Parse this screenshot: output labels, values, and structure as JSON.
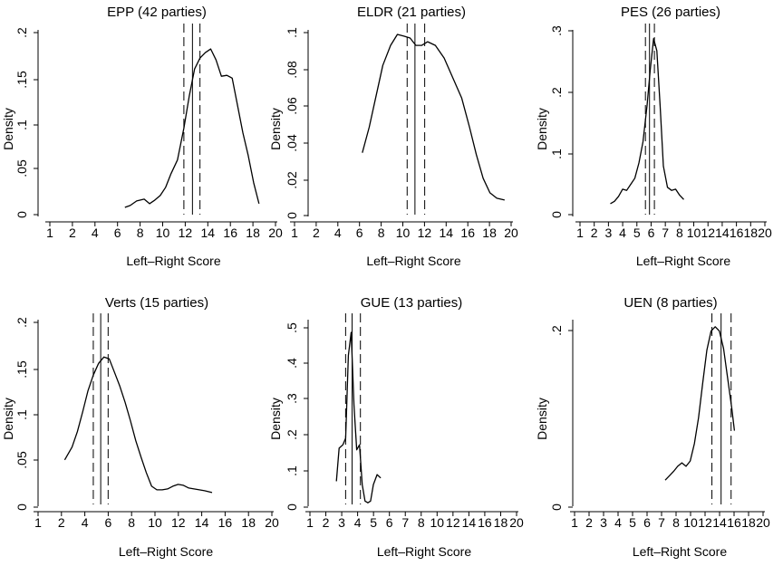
{
  "figure": {
    "x_ticks": [
      "1",
      "2",
      "4",
      "6",
      "8",
      "10",
      "12",
      "14",
      "16",
      "18",
      "20"
    ],
    "x_ticks_short": [
      "1",
      "2",
      "3",
      "4",
      "5",
      "6",
      "7",
      "8",
      "10",
      "12",
      "14",
      "16",
      "18",
      "20"
    ]
  },
  "chart_data": [
    {
      "type": "line",
      "title": "EPP (42 parties)",
      "xlabel": "Left–Right Score",
      "ylabel": "Density",
      "xlim": [
        1,
        20
      ],
      "ylim": [
        0,
        0.2
      ],
      "yticks": [
        0,
        0.05,
        0.1,
        0.15,
        0.2
      ],
      "ytick_labels": [
        "0",
        ".05",
        ".1",
        ".15",
        ".2"
      ],
      "ref_lines": {
        "mean": 12.6,
        "ci": [
          11.8,
          13.3
        ]
      },
      "x": [
        6.3,
        6.8,
        7.4,
        8.1,
        8.6,
        9.1,
        9.6,
        10.1,
        10.6,
        11.2,
        11.8,
        12.3,
        12.8,
        13.3,
        13.8,
        14.3,
        14.8,
        15.3,
        15.8,
        16.3,
        16.8,
        17.3,
        17.8,
        18.3,
        18.8
      ],
      "y": [
        0.008,
        0.01,
        0.015,
        0.017,
        0.012,
        0.016,
        0.021,
        0.03,
        0.045,
        0.06,
        0.095,
        0.13,
        0.16,
        0.172,
        0.178,
        0.182,
        0.17,
        0.152,
        0.153,
        0.15,
        0.12,
        0.09,
        0.065,
        0.035,
        0.012
      ]
    },
    {
      "type": "line",
      "title": "ELDR (21 parties)",
      "xlabel": "Left–Right Score",
      "ylabel": "Density",
      "xlim": [
        1,
        21
      ],
      "ylim": [
        0,
        0.1
      ],
      "yticks": [
        0,
        0.02,
        0.04,
        0.06,
        0.08,
        0.1
      ],
      "ytick_labels": [
        "0",
        ".02",
        ".04",
        ".06",
        ".08",
        ".1"
      ],
      "ref_lines": {
        "mean": 11.5,
        "ci": [
          10.7,
          12.5
        ]
      },
      "x": [
        6.1,
        6.8,
        7.5,
        8.2,
        9.0,
        9.7,
        10.4,
        11.0,
        11.6,
        12.2,
        12.8,
        13.6,
        14.5,
        15.4,
        16.3,
        17.1,
        17.8,
        18.5,
        19.2,
        19.9,
        20.7
      ],
      "y": [
        0.034,
        0.048,
        0.065,
        0.082,
        0.093,
        0.099,
        0.098,
        0.097,
        0.093,
        0.093,
        0.095,
        0.093,
        0.086,
        0.075,
        0.064,
        0.048,
        0.033,
        0.02,
        0.012,
        0.009,
        0.008
      ]
    },
    {
      "type": "line",
      "title": "PES (26 parties)",
      "xlabel": "Left–Right Score",
      "ylabel": "Density",
      "xlim": [
        1,
        21
      ],
      "ylim": [
        0,
        0.3
      ],
      "yticks": [
        0,
        0.1,
        0.2,
        0.3
      ],
      "ytick_labels": [
        "0",
        ".1",
        ".2",
        ".3"
      ],
      "ref_lines": {
        "mean": 7.3,
        "ci": [
          6.8,
          7.9
        ]
      },
      "x": [
        2.5,
        3.0,
        3.5,
        4.0,
        4.5,
        5.0,
        5.5,
        6.0,
        6.5,
        7.0,
        7.4,
        7.8,
        8.2,
        8.6,
        9.0,
        9.5,
        10.0,
        10.5,
        11.0,
        11.5
      ],
      "y": [
        0.018,
        0.022,
        0.03,
        0.042,
        0.04,
        0.05,
        0.06,
        0.085,
        0.12,
        0.18,
        0.24,
        0.29,
        0.27,
        0.18,
        0.08,
        0.045,
        0.04,
        0.042,
        0.032,
        0.025
      ]
    },
    {
      "type": "line",
      "title": "Verts (15 parties)",
      "xlabel": "Left–Right Score",
      "ylabel": "Density",
      "xlim": [
        1,
        21
      ],
      "ylim": [
        0,
        0.2
      ],
      "yticks": [
        0,
        0.05,
        0.1,
        0.15,
        0.2
      ],
      "ytick_labels": [
        "0",
        ".05",
        ".1",
        ".15",
        ".2"
      ],
      "ref_lines": {
        "mean": 5.2,
        "ci": [
          4.5,
          5.9
        ]
      },
      "x": [
        1.8,
        2.5,
        3.0,
        3.5,
        4.0,
        4.5,
        5.0,
        5.5,
        6.0,
        6.5,
        7.0,
        7.5,
        8.0,
        8.5,
        9.0,
        9.5,
        10.0,
        10.5,
        11.0,
        11.5,
        12.0,
        12.5,
        13.0,
        13.5,
        14.0,
        14.5,
        15.0,
        15.7
      ],
      "y": [
        0.049,
        0.063,
        0.08,
        0.102,
        0.125,
        0.142,
        0.155,
        0.162,
        0.16,
        0.145,
        0.13,
        0.112,
        0.092,
        0.07,
        0.052,
        0.035,
        0.02,
        0.016,
        0.016,
        0.017,
        0.02,
        0.022,
        0.021,
        0.018,
        0.017,
        0.016,
        0.015,
        0.013
      ]
    },
    {
      "type": "line",
      "title": "GUE (13 parties)",
      "xlabel": "Left–Right Score",
      "ylabel": "Density",
      "xlim": [
        1,
        21
      ],
      "ylim": [
        0,
        0.55
      ],
      "yticks": [
        0,
        0.1,
        0.2,
        0.3,
        0.4,
        0.5
      ],
      "ytick_labels": [
        "0",
        ".1",
        ".2",
        ".3",
        ".4",
        ".5"
      ],
      "ref_lines": {
        "mean": 3.6,
        "ci": [
          2.9,
          4.5
        ]
      },
      "x": [
        1.9,
        2.2,
        2.6,
        2.9,
        3.2,
        3.5,
        3.8,
        4.1,
        4.4,
        4.7,
        5.0,
        5.3,
        5.6,
        5.9,
        6.3,
        6.7
      ],
      "y": [
        0.07,
        0.17,
        0.18,
        0.2,
        0.45,
        0.52,
        0.3,
        0.165,
        0.18,
        0.06,
        0.01,
        0.005,
        0.01,
        0.06,
        0.09,
        0.08
      ]
    },
    {
      "type": "line",
      "title": "UEN (8 parties)",
      "xlabel": "Left–Right Score",
      "ylabel": "Density",
      "xlim": [
        1,
        21
      ],
      "ylim": [
        0,
        0.21
      ],
      "yticks": [
        0,
        0.2
      ],
      "ytick_labels": [
        "0",
        ".2"
      ],
      "ref_lines": {
        "mean": 16.4,
        "ci": [
          15.3,
          17.6
        ]
      },
      "x": [
        9.7,
        10.2,
        10.7,
        11.2,
        11.7,
        12.2,
        12.7,
        13.2,
        13.7,
        14.2,
        14.7,
        15.2,
        15.7,
        16.2,
        16.7,
        17.2,
        17.7,
        18.0
      ],
      "y": [
        0.028,
        0.033,
        0.038,
        0.044,
        0.048,
        0.044,
        0.05,
        0.07,
        0.1,
        0.14,
        0.178,
        0.2,
        0.205,
        0.2,
        0.18,
        0.145,
        0.11,
        0.085
      ]
    }
  ]
}
